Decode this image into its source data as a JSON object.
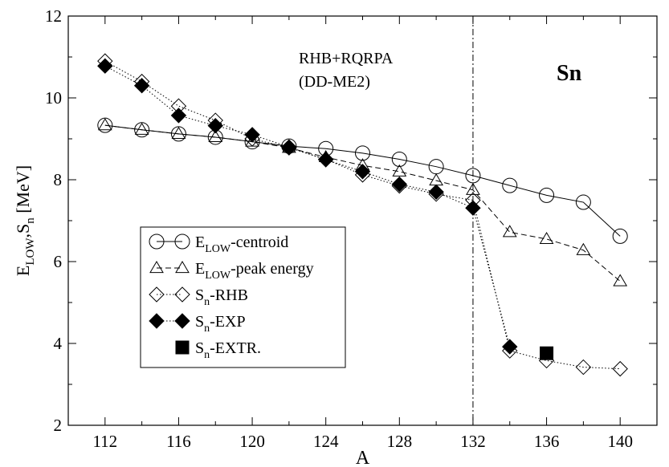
{
  "chart_data": {
    "type": "line",
    "xlabel": "A",
    "ylabel_main": "E",
    "ylabel_sub1": "LOW",
    "ylabel_sep": ",S",
    "ylabel_sub2": "n",
    "ylabel_unit": " [MeV]",
    "xlim": [
      110,
      142
    ],
    "ylim": [
      2,
      12
    ],
    "xticks": [
      112,
      116,
      120,
      124,
      128,
      132,
      136,
      140
    ],
    "yticks": [
      2,
      4,
      6,
      8,
      10,
      12
    ],
    "grid": false,
    "legend_position": "center-left",
    "vline_x": 132,
    "annotations": {
      "model_line1": "RHB+RQRPA",
      "model_line2": "(DD-ME2)",
      "element": "Sn"
    },
    "series": [
      {
        "legend_main": "E",
        "legend_sub": "LOW",
        "legend_rest": "-centroid",
        "marker": "circle",
        "line": "solid",
        "x": [
          112,
          114,
          116,
          118,
          120,
          122,
          124,
          126,
          128,
          130,
          132,
          134,
          136,
          138,
          140
        ],
        "y": [
          9.33,
          9.22,
          9.12,
          9.04,
          8.93,
          8.82,
          8.76,
          8.65,
          8.5,
          8.32,
          8.1,
          7.86,
          7.62,
          7.45,
          6.62
        ]
      },
      {
        "legend_main": "E",
        "legend_sub": "LOW",
        "legend_rest": "-peak energy",
        "marker": "triangle",
        "line": "dashed",
        "x": [
          112,
          114,
          116,
          118,
          120,
          122,
          124,
          126,
          128,
          130,
          132,
          134,
          136,
          138,
          140
        ],
        "y": [
          9.33,
          9.22,
          9.12,
          9.04,
          8.93,
          8.78,
          8.55,
          8.35,
          8.2,
          7.98,
          7.75,
          6.72,
          6.55,
          6.28,
          5.52
        ]
      },
      {
        "legend_main": "S",
        "legend_sub": "n",
        "legend_rest": "-RHB",
        "marker": "diamond-open",
        "line": "dotted",
        "x": [
          112,
          114,
          116,
          118,
          120,
          122,
          124,
          126,
          128,
          130,
          132,
          134,
          136,
          138,
          140
        ],
        "y": [
          10.9,
          10.4,
          9.8,
          9.45,
          9.0,
          8.78,
          8.5,
          8.12,
          7.85,
          7.65,
          7.5,
          3.82,
          3.58,
          3.42,
          3.38
        ]
      },
      {
        "legend_main": "S",
        "legend_sub": "n",
        "legend_rest": "-EXP",
        "marker": "diamond-filled",
        "line": "dotted",
        "x": [
          112,
          114,
          116,
          118,
          120,
          122,
          124,
          126,
          128,
          130,
          132,
          134
        ],
        "y": [
          10.78,
          10.3,
          9.57,
          9.32,
          9.1,
          8.8,
          8.49,
          8.2,
          7.89,
          7.7,
          7.31,
          3.92
        ]
      },
      {
        "legend_main": "S",
        "legend_sub": "n",
        "legend_rest": "-EXTR.",
        "marker": "square-filled",
        "line": "none",
        "x": [
          136
        ],
        "y": [
          3.76
        ]
      }
    ]
  }
}
